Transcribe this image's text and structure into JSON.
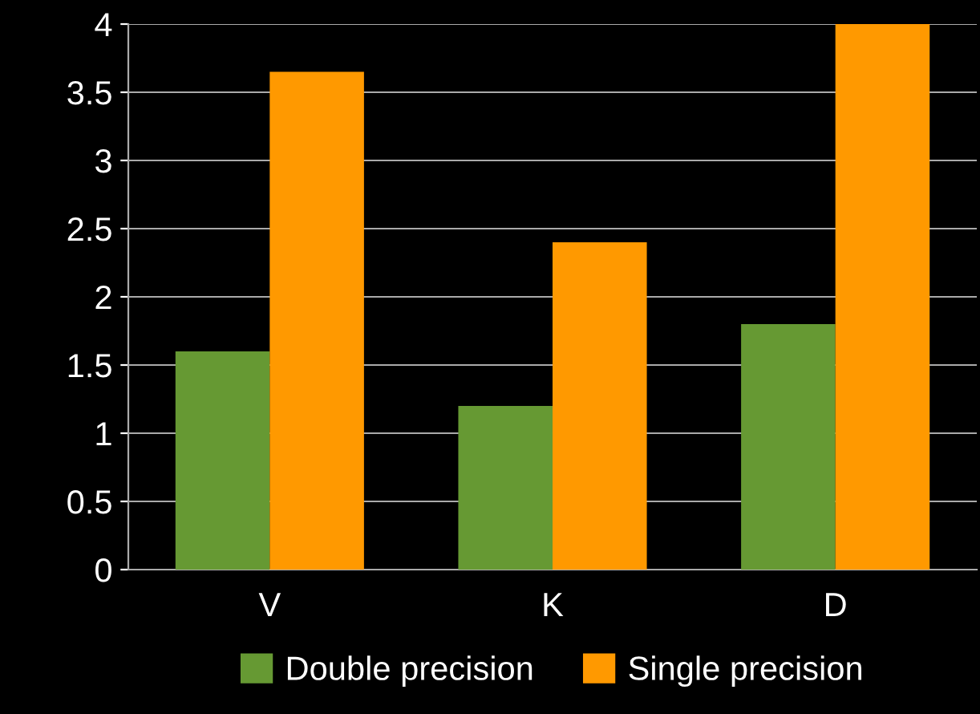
{
  "chart_data": {
    "type": "bar",
    "categories": [
      "V",
      "K",
      "D"
    ],
    "series": [
      {
        "name": "Double precision",
        "color": "#669933",
        "values": [
          1.6,
          1.2,
          1.8
        ]
      },
      {
        "name": "Single precision",
        "color": "#ff9900",
        "values": [
          3.65,
          2.4,
          4.0
        ]
      }
    ],
    "ylim": [
      0,
      4
    ],
    "yticks": [
      0,
      0.5,
      1,
      1.5,
      2,
      2.5,
      3,
      3.5,
      4
    ],
    "grid": "y",
    "legend": "bottom"
  }
}
